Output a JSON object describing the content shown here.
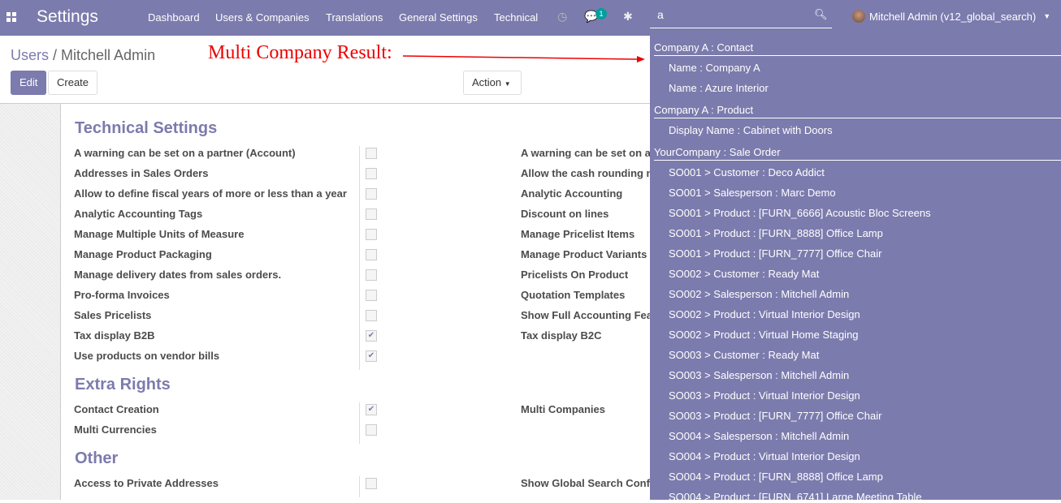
{
  "nav": {
    "brand": "Settings",
    "menus": [
      "Dashboard",
      "Users & Companies",
      "Translations",
      "General Settings",
      "Technical"
    ],
    "chat_count": "1",
    "search_value": "a",
    "user": "Mitchell Admin (v12_global_search)"
  },
  "control": {
    "breadcrumb_parent": "Users",
    "breadcrumb_current": "Mitchell Admin",
    "annotation": "Multi Company Result:",
    "edit": "Edit",
    "create": "Create",
    "action": "Action"
  },
  "sections": [
    {
      "title": "Technical Settings",
      "left": [
        {
          "label": "A warning can be set on a partner (Account)",
          "checked": false
        },
        {
          "label": "Addresses in Sales Orders",
          "checked": false
        },
        {
          "label": "Allow to define fiscal years of more or less than a year",
          "checked": false
        },
        {
          "label": "Analytic Accounting Tags",
          "checked": false
        },
        {
          "label": "Manage Multiple Units of Measure",
          "checked": false
        },
        {
          "label": "Manage Product Packaging",
          "checked": false
        },
        {
          "label": "Manage delivery dates from sales orders.",
          "checked": false
        },
        {
          "label": "Pro-forma Invoices",
          "checked": false
        },
        {
          "label": "Sales Pricelists",
          "checked": false
        },
        {
          "label": "Tax display B2B",
          "checked": true
        },
        {
          "label": "Use products on vendor bills",
          "checked": true
        }
      ],
      "right": [
        "A warning can be set on a",
        "Allow the cash rounding n",
        "Analytic Accounting",
        "Discount on lines",
        "Manage Pricelist Items",
        "Manage Product Variants",
        "Pricelists On Product",
        "Quotation Templates",
        "Show Full Accounting Fea",
        "Tax display B2C"
      ]
    },
    {
      "title": "Extra Rights",
      "left": [
        {
          "label": "Contact Creation",
          "checked": true
        },
        {
          "label": "Multi Currencies",
          "checked": false
        }
      ],
      "right": [
        "Multi Companies"
      ]
    },
    {
      "title": "Other",
      "left": [
        {
          "label": "Access to Private Addresses",
          "checked": false
        }
      ],
      "right": [
        "Show Global Search Conf"
      ]
    }
  ],
  "results": [
    {
      "group": "Company A : Contact",
      "items": [
        "Name : Company A",
        "Name : Azure Interior"
      ]
    },
    {
      "group": "Company A : Product",
      "items": [
        "Display Name : Cabinet with Doors"
      ]
    },
    {
      "group": "YourCompany : Sale Order",
      "items": [
        "SO001 > Customer : Deco Addict",
        "SO001 > Salesperson : Marc Demo",
        "SO001 > Product : [FURN_6666] Acoustic Bloc Screens",
        "SO001 > Product : [FURN_8888] Office Lamp",
        "SO001 > Product : [FURN_7777] Office Chair",
        "SO002 > Customer : Ready Mat",
        "SO002 > Salesperson : Mitchell Admin",
        "SO002 > Product : Virtual Interior Design",
        "SO002 > Product : Virtual Home Staging",
        "SO003 > Customer : Ready Mat",
        "SO003 > Salesperson : Mitchell Admin",
        "SO003 > Product : Virtual Interior Design",
        "SO003 > Product : [FURN_7777] Office Chair",
        "SO004 > Salesperson : Mitchell Admin",
        "SO004 > Product : Virtual Interior Design",
        "SO004 > Product : [FURN_8888] Office Lamp",
        "SO004 > Product : [FURN_6741] Large Meeting Table"
      ]
    }
  ],
  "colors": {
    "brand": "#7c7bad",
    "annotation": "#ee0000",
    "badge": "#00a09d"
  }
}
